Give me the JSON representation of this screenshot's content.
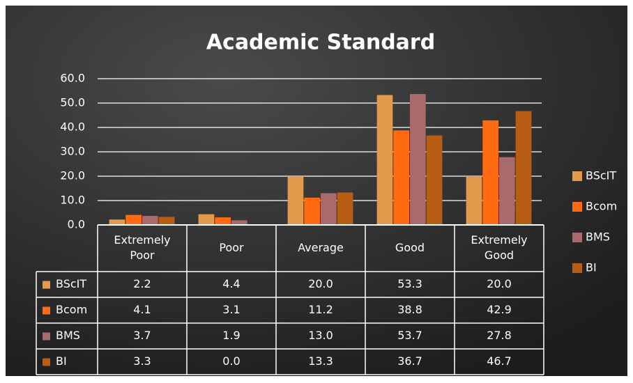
{
  "chart_data": {
    "type": "bar",
    "title": "Academic Standard",
    "categories": [
      "Extremely Poor",
      "Poor",
      "Average",
      "Good",
      "Extremely Good"
    ],
    "series": [
      {
        "name": "BScIT",
        "color": "#e39a4a",
        "values": [
          2.2,
          4.4,
          20.0,
          53.3,
          20.0
        ],
        "value_labels": [
          "2.2",
          "4.4",
          "20.0",
          "53.3",
          "20.0"
        ]
      },
      {
        "name": "Bcom",
        "color": "#ff6a12",
        "values": [
          4.1,
          3.1,
          11.2,
          38.8,
          42.9
        ],
        "value_labels": [
          "4.1",
          "3.1",
          "11.2",
          "38.8",
          "42.9"
        ]
      },
      {
        "name": "BMS",
        "color": "#a86a6a",
        "values": [
          3.7,
          1.9,
          13.0,
          53.7,
          27.8
        ],
        "value_labels": [
          "3.7",
          "1.9",
          "13.0",
          "53.7",
          "27.8"
        ]
      },
      {
        "name": "BI",
        "color": "#b85e14",
        "values": [
          3.3,
          0.0,
          13.3,
          36.7,
          46.7
        ],
        "value_labels": [
          "3.3",
          "0.0",
          "13.3",
          "36.7",
          "46.7"
        ]
      }
    ],
    "ylim": [
      0,
      60
    ],
    "yticks": [
      {
        "value": 0,
        "label": "0.0"
      },
      {
        "value": 10,
        "label": "10.0"
      },
      {
        "value": 20,
        "label": "20.0"
      },
      {
        "value": 30,
        "label": "30.0"
      },
      {
        "value": 40,
        "label": "40.0"
      },
      {
        "value": 50,
        "label": "50.0"
      },
      {
        "value": 60,
        "label": "60.0"
      }
    ],
    "grid": true,
    "legend": "right"
  }
}
